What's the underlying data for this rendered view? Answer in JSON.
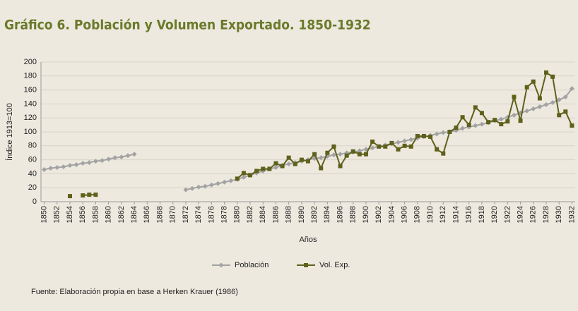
{
  "chart_data": {
    "type": "line",
    "title": "Gráfico 6. Población y Volumen Exportado. 1850-1932",
    "y_label": "Índice 1913=100",
    "x_label": "Años",
    "source": "Fuente: Elaboración propia en base a Herken Krauer (1986)",
    "x": [
      1850,
      1851,
      1852,
      1853,
      1854,
      1855,
      1856,
      1857,
      1858,
      1859,
      1860,
      1861,
      1862,
      1863,
      1864,
      1865,
      1866,
      1867,
      1868,
      1869,
      1870,
      1871,
      1872,
      1873,
      1874,
      1875,
      1876,
      1877,
      1878,
      1879,
      1880,
      1881,
      1882,
      1883,
      1884,
      1885,
      1886,
      1887,
      1888,
      1889,
      1890,
      1891,
      1892,
      1893,
      1894,
      1895,
      1896,
      1897,
      1898,
      1899,
      1900,
      1901,
      1902,
      1903,
      1904,
      1905,
      1906,
      1907,
      1908,
      1909,
      1910,
      1911,
      1912,
      1913,
      1914,
      1915,
      1916,
      1917,
      1918,
      1919,
      1920,
      1921,
      1922,
      1923,
      1924,
      1925,
      1926,
      1927,
      1928,
      1929,
      1930,
      1931,
      1932
    ],
    "xlim": [
      1849.5,
      1932.5
    ],
    "xticks": [
      1850,
      1852,
      1854,
      1856,
      1858,
      1860,
      1862,
      1864,
      1866,
      1868,
      1870,
      1872,
      1874,
      1876,
      1878,
      1880,
      1882,
      1884,
      1886,
      1888,
      1890,
      1892,
      1894,
      1896,
      1898,
      1900,
      1902,
      1904,
      1906,
      1908,
      1910,
      1912,
      1914,
      1916,
      1918,
      1920,
      1922,
      1924,
      1926,
      1928,
      1930,
      1932
    ],
    "ylim": [
      0,
      200
    ],
    "yticks": [
      0,
      20,
      40,
      60,
      80,
      100,
      120,
      140,
      160,
      180,
      200
    ],
    "grid": true,
    "legend": "bottom",
    "series": [
      {
        "name": "Población",
        "color": "#a3a3a3",
        "marker": "diamond",
        "values": [
          46,
          48,
          49,
          50,
          52,
          53,
          55,
          56,
          58,
          59,
          61,
          63,
          64,
          66,
          68,
          null,
          null,
          null,
          null,
          null,
          null,
          null,
          17,
          19,
          21,
          22,
          24,
          26,
          28,
          30,
          32,
          35,
          38,
          41,
          44,
          47,
          49,
          52,
          54,
          56,
          58,
          60,
          62,
          63,
          65,
          67,
          68,
          70,
          71,
          73,
          75,
          77,
          79,
          81,
          83,
          85,
          87,
          89,
          91,
          93,
          95,
          97,
          99,
          100,
          102,
          105,
          107,
          109,
          111,
          113,
          116,
          118,
          121,
          124,
          127,
          130,
          133,
          136,
          139,
          142,
          146,
          150,
          162
        ]
      },
      {
        "name": "Vol. Exp.",
        "color": "#5e611b",
        "marker": "square",
        "values": [
          null,
          null,
          null,
          null,
          8,
          null,
          9,
          10,
          10,
          null,
          null,
          null,
          null,
          null,
          null,
          null,
          null,
          null,
          null,
          null,
          null,
          null,
          null,
          null,
          null,
          null,
          null,
          null,
          null,
          null,
          33,
          41,
          38,
          44,
          47,
          47,
          55,
          51,
          63,
          54,
          60,
          58,
          68,
          48,
          70,
          79,
          51,
          66,
          72,
          68,
          68,
          86,
          79,
          79,
          84,
          75,
          80,
          79,
          94,
          94,
          93,
          75,
          69,
          100,
          106,
          121,
          110,
          135,
          127,
          114,
          117,
          111,
          115,
          150,
          116,
          164,
          172,
          148,
          185,
          179,
          124,
          129,
          109
        ]
      }
    ]
  }
}
